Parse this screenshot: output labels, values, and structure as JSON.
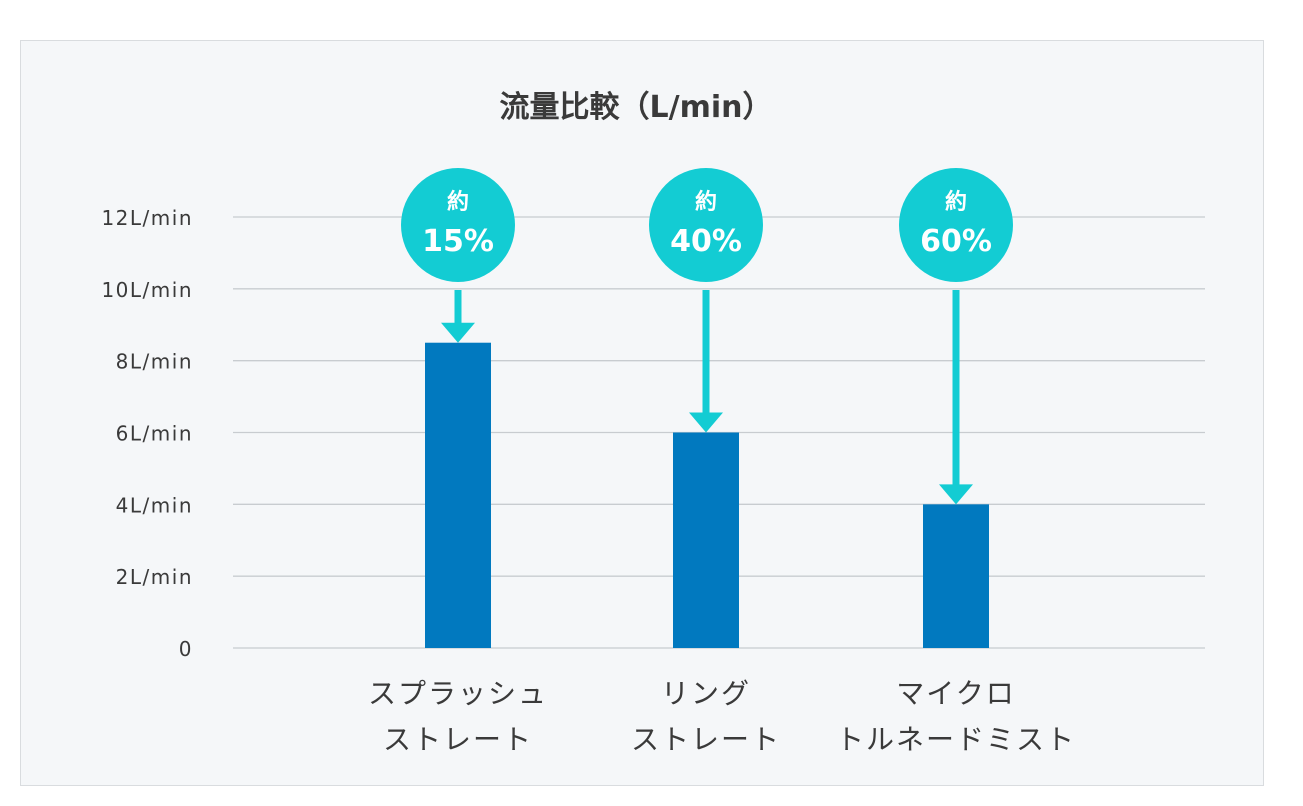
{
  "chart_data": {
    "type": "bar",
    "title": "流量比較（L/min）",
    "y_ticks": [
      "0",
      "2L/min",
      "4L/min",
      "6L/min",
      "8L/min",
      "10L/min",
      "12L/min"
    ],
    "ylim": [
      0,
      12
    ],
    "grid": true,
    "categories": [
      [
        "スプラッシュ",
        "ストレート"
      ],
      [
        "リング",
        "ストレート"
      ],
      [
        "マイクロ",
        "トルネードミスト"
      ]
    ],
    "values": [
      8.5,
      6.0,
      4.0
    ],
    "annotations": [
      {
        "prefix": "約",
        "text": "15%"
      },
      {
        "prefix": "約",
        "text": "40%"
      },
      {
        "prefix": "約",
        "text": "60%"
      }
    ],
    "bar_color": "#0179bf",
    "accent_color": "#13ccd3",
    "grid_color": "#c8ccd0",
    "text_color": "#3a3a3a"
  }
}
